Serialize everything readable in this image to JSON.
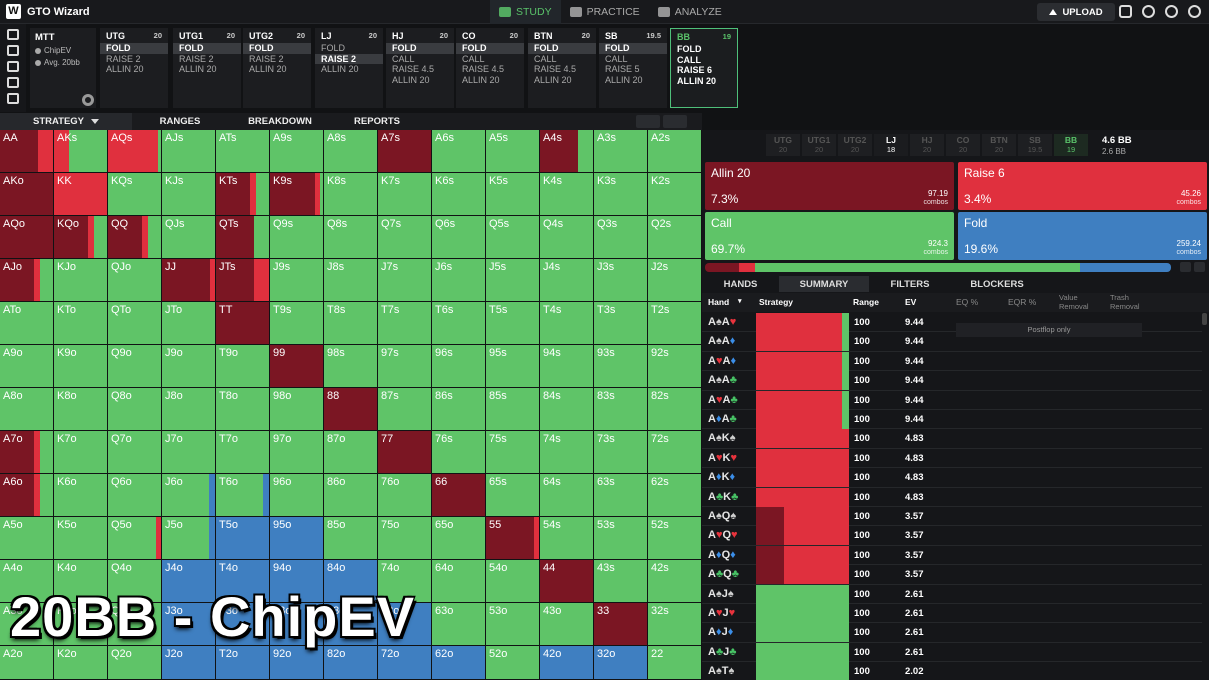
{
  "app": {
    "logo": "W",
    "name": "GTO Wizard",
    "nav": [
      {
        "label": "STUDY",
        "icon": "graduation-cap-icon",
        "active": true
      },
      {
        "label": "PRACTICE",
        "icon": "gamepad-icon",
        "active": false
      },
      {
        "label": "ANALYZE",
        "icon": "lightbulb-icon",
        "active": false
      }
    ],
    "upload_label": "UPLOAD"
  },
  "sidebar": {
    "icons": [
      "bookmark-icon",
      "history-icon",
      "save-icon",
      "gamepad-icon",
      "sort-icon"
    ]
  },
  "game": {
    "title": "MTT",
    "line1": "ChipEV",
    "line2": "Avg. 20bb"
  },
  "positions": [
    {
      "name": "UTG",
      "stack": "20",
      "actions": [
        "FOLD",
        "RAISE 2",
        "ALLIN 20"
      ],
      "selected": 0
    },
    {
      "name": "UTG1",
      "stack": "20",
      "actions": [
        "FOLD",
        "RAISE 2",
        "ALLIN 20"
      ],
      "selected": 0
    },
    {
      "name": "UTG2",
      "stack": "20",
      "actions": [
        "FOLD",
        "RAISE 2",
        "ALLIN 20"
      ],
      "selected": 0
    },
    {
      "name": "LJ",
      "stack": "20",
      "actions": [
        "FOLD",
        "RAISE 2",
        "ALLIN 20"
      ],
      "selected": 1
    },
    {
      "name": "HJ",
      "stack": "20",
      "actions": [
        "FOLD",
        "CALL",
        "RAISE 4.5",
        "ALLIN 20"
      ],
      "selected": 0
    },
    {
      "name": "CO",
      "stack": "20",
      "actions": [
        "FOLD",
        "CALL",
        "RAISE 4.5",
        "ALLIN 20"
      ],
      "selected": 0
    },
    {
      "name": "BTN",
      "stack": "20",
      "actions": [
        "FOLD",
        "CALL",
        "RAISE 4.5",
        "ALLIN 20"
      ],
      "selected": 0
    },
    {
      "name": "SB",
      "stack": "19.5",
      "actions": [
        "FOLD",
        "CALL",
        "RAISE 5",
        "ALLIN 20"
      ],
      "selected": 0
    },
    {
      "name": "BB",
      "stack": "19",
      "actions": [
        "FOLD",
        "CALL",
        "RAISE 6",
        "ALLIN 20"
      ],
      "selected": -1,
      "active": true
    }
  ],
  "view_tabs": [
    "STRATEGY",
    "RANGES",
    "BREAKDOWN",
    "REPORTS"
  ],
  "colors": {
    "allin": "#7b1623",
    "raise": "#e0303e",
    "call": "#5fc468",
    "fold": "#3f7fc1"
  },
  "matrix": {
    "ranks": [
      "A",
      "K",
      "Q",
      "J",
      "T",
      "9",
      "8",
      "7",
      "6",
      "5",
      "4",
      "3",
      "2"
    ],
    "cells": [
      [
        "ar",
        "rc",
        "rC",
        "c",
        "c",
        "c",
        "c",
        "a",
        "c",
        "c",
        "ac",
        "c",
        "c"
      ],
      [
        "a",
        "r",
        "c",
        "c",
        "aRc",
        "aRC",
        "c",
        "c",
        "c",
        "c",
        "c",
        "c",
        "c"
      ],
      [
        "a",
        "aRc",
        "aRc",
        "c",
        "ac",
        "c",
        "c",
        "c",
        "c",
        "c",
        "c",
        "c",
        "c"
      ],
      [
        "aRc",
        "c",
        "c",
        "aR",
        "ar",
        "c",
        "c",
        "c",
        "c",
        "c",
        "c",
        "c",
        "c"
      ],
      [
        "c",
        "c",
        "c",
        "c",
        "a",
        "c",
        "c",
        "c",
        "c",
        "c",
        "c",
        "c",
        "c"
      ],
      [
        "c",
        "c",
        "c",
        "c",
        "c",
        "a",
        "c",
        "c",
        "c",
        "c",
        "c",
        "c",
        "c"
      ],
      [
        "c",
        "c",
        "c",
        "c",
        "c",
        "c",
        "a",
        "c",
        "c",
        "c",
        "c",
        "c",
        "c"
      ],
      [
        "aRc",
        "c",
        "c",
        "c",
        "c",
        "c",
        "c",
        "a",
        "c",
        "c",
        "c",
        "c",
        "c"
      ],
      [
        "aRc",
        "c",
        "c",
        "cF",
        "cFc",
        "c",
        "c",
        "c",
        "a",
        "c",
        "c",
        "c",
        "c"
      ],
      [
        "c",
        "c",
        "cR",
        "cF",
        "f",
        "f",
        "c",
        "c",
        "c",
        "aR",
        "c",
        "c",
        "c"
      ],
      [
        "c",
        "c",
        "c",
        "f",
        "f",
        "f",
        "f",
        "c",
        "c",
        "c",
        "a",
        "c",
        "c"
      ],
      [
        "c",
        "c",
        "c",
        "f",
        "f",
        "f",
        "f",
        "f",
        "c",
        "c",
        "c",
        "a",
        "c"
      ],
      [
        "c",
        "c",
        "c",
        "f",
        "f",
        "f",
        "f",
        "f",
        "f",
        "cf",
        "f",
        "f",
        "c"
      ]
    ]
  },
  "watermark": "20BB - ChipEV",
  "right": {
    "chips": [
      {
        "name": "UTG",
        "stack": "20"
      },
      {
        "name": "UTG1",
        "stack": "20"
      },
      {
        "name": "UTG2",
        "stack": "20"
      },
      {
        "name": "LJ",
        "stack": "18"
      },
      {
        "name": "HJ",
        "stack": "20"
      },
      {
        "name": "CO",
        "stack": "20"
      },
      {
        "name": "BTN",
        "stack": "20"
      },
      {
        "name": "SB",
        "stack": "19.5"
      },
      {
        "name": "BB",
        "stack": "19"
      }
    ],
    "pot": "4.6 BB",
    "pot_sub": "2.6 BB",
    "actions": [
      {
        "name": "Allin 20",
        "pct": "7.3%",
        "combos": "97.19",
        "combos_label": "combos",
        "color": "#7b1623",
        "freq": 7.3
      },
      {
        "name": "Raise 6",
        "pct": "3.4%",
        "combos": "45.26",
        "combos_label": "combos",
        "color": "#e0303e",
        "freq": 3.4
      },
      {
        "name": "Call",
        "pct": "69.7%",
        "combos": "924.3",
        "combos_label": "combos",
        "color": "#5fc468",
        "freq": 69.7
      },
      {
        "name": "Fold",
        "pct": "19.6%",
        "combos": "259.24",
        "combos_label": "combos",
        "color": "#3f7fc1",
        "freq": 19.6
      }
    ],
    "tabs": [
      "HANDS",
      "SUMMARY",
      "FILTERS",
      "BLOCKERS"
    ],
    "columns": {
      "hand": "Hand",
      "strategy": "Strategy",
      "range": "Range",
      "ev": "EV",
      "eq": "EQ %",
      "eqr": "EQR %",
      "value": "Value",
      "value2": "Removal",
      "trash": "Trash",
      "trash2": "Removal"
    },
    "postflop_only": "Postflop only",
    "hands": [
      {
        "c1": "A",
        "s1": "s",
        "c2": "A",
        "s2": "h",
        "range": "100",
        "ev": "9.44",
        "strat": [
          0,
          92,
          8,
          0
        ]
      },
      {
        "c1": "A",
        "s1": "s",
        "c2": "A",
        "s2": "d",
        "range": "100",
        "ev": "9.44",
        "strat": [
          0,
          92,
          8,
          0
        ]
      },
      {
        "c1": "A",
        "s1": "h",
        "c2": "A",
        "s2": "d",
        "range": "100",
        "ev": "9.44",
        "strat": [
          0,
          92,
          8,
          0
        ]
      },
      {
        "c1": "A",
        "s1": "s",
        "c2": "A",
        "s2": "c",
        "range": "100",
        "ev": "9.44",
        "strat": [
          0,
          92,
          8,
          0
        ]
      },
      {
        "c1": "A",
        "s1": "h",
        "c2": "A",
        "s2": "c",
        "range": "100",
        "ev": "9.44",
        "strat": [
          0,
          92,
          8,
          0
        ]
      },
      {
        "c1": "A",
        "s1": "d",
        "c2": "A",
        "s2": "c",
        "range": "100",
        "ev": "9.44",
        "strat": [
          0,
          92,
          8,
          0
        ]
      },
      {
        "c1": "A",
        "s1": "s",
        "c2": "K",
        "s2": "s",
        "range": "100",
        "ev": "4.83",
        "strat": [
          0,
          100,
          0,
          0
        ]
      },
      {
        "c1": "A",
        "s1": "h",
        "c2": "K",
        "s2": "h",
        "range": "100",
        "ev": "4.83",
        "strat": [
          0,
          100,
          0,
          0
        ]
      },
      {
        "c1": "A",
        "s1": "d",
        "c2": "K",
        "s2": "d",
        "range": "100",
        "ev": "4.83",
        "strat": [
          0,
          100,
          0,
          0
        ]
      },
      {
        "c1": "A",
        "s1": "c",
        "c2": "K",
        "s2": "c",
        "range": "100",
        "ev": "4.83",
        "strat": [
          0,
          100,
          0,
          0
        ]
      },
      {
        "c1": "A",
        "s1": "s",
        "c2": "Q",
        "s2": "s",
        "range": "100",
        "ev": "3.57",
        "strat": [
          30,
          70,
          0,
          0
        ]
      },
      {
        "c1": "A",
        "s1": "h",
        "c2": "Q",
        "s2": "h",
        "range": "100",
        "ev": "3.57",
        "strat": [
          30,
          70,
          0,
          0
        ]
      },
      {
        "c1": "A",
        "s1": "d",
        "c2": "Q",
        "s2": "d",
        "range": "100",
        "ev": "3.57",
        "strat": [
          30,
          70,
          0,
          0
        ]
      },
      {
        "c1": "A",
        "s1": "c",
        "c2": "Q",
        "s2": "c",
        "range": "100",
        "ev": "3.57",
        "strat": [
          30,
          70,
          0,
          0
        ]
      },
      {
        "c1": "A",
        "s1": "s",
        "c2": "J",
        "s2": "s",
        "range": "100",
        "ev": "2.61",
        "strat": [
          0,
          0,
          100,
          0
        ]
      },
      {
        "c1": "A",
        "s1": "h",
        "c2": "J",
        "s2": "h",
        "range": "100",
        "ev": "2.61",
        "strat": [
          0,
          0,
          100,
          0
        ]
      },
      {
        "c1": "A",
        "s1": "d",
        "c2": "J",
        "s2": "d",
        "range": "100",
        "ev": "2.61",
        "strat": [
          0,
          0,
          100,
          0
        ]
      },
      {
        "c1": "A",
        "s1": "c",
        "c2": "J",
        "s2": "c",
        "range": "100",
        "ev": "2.61",
        "strat": [
          0,
          0,
          100,
          0
        ]
      },
      {
        "c1": "A",
        "s1": "s",
        "c2": "T",
        "s2": "s",
        "range": "100",
        "ev": "2.02",
        "strat": [
          0,
          0,
          100,
          0
        ]
      }
    ]
  }
}
